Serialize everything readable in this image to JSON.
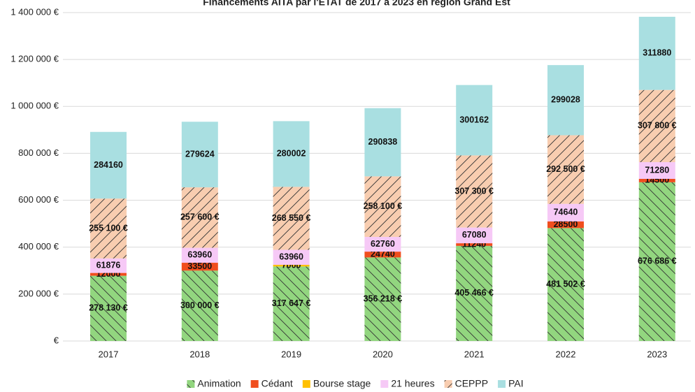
{
  "chart_data": {
    "type": "stacked_bar",
    "title": "Financements AITA par l'ETAT de 2017 à 2023 en région Grand Est",
    "categories": [
      "2017",
      "2018",
      "2019",
      "2020",
      "2021",
      "2022",
      "2023"
    ],
    "ylim": [
      0,
      1400000
    ],
    "yticks": [
      {
        "value": 0,
        "label": "€"
      },
      {
        "value": 200000,
        "label": "200 000 €"
      },
      {
        "value": 400000,
        "label": "400 000 €"
      },
      {
        "value": 600000,
        "label": "600 000 €"
      },
      {
        "value": 800000,
        "label": "800 000 €"
      },
      {
        "value": 1000000,
        "label": "1 000 000 €"
      },
      {
        "value": 1200000,
        "label": "1 200 000 €"
      },
      {
        "value": 1400000,
        "label": "1 400 000 €"
      }
    ],
    "grid": true,
    "legend": "bottom",
    "series": [
      {
        "name": "Animation",
        "color": "#92d67f",
        "hatch": "backslash",
        "values": [
          278130,
          300000,
          317647,
          356218,
          405466,
          481502,
          676686
        ],
        "value_labels": [
          "278 130 €",
          "300 000 €",
          "317 647 €",
          "356 218 €",
          "405 466 €",
          "481 502 €",
          "676 686 €"
        ]
      },
      {
        "name": "Cédant",
        "color": "#f04e1e",
        "values": [
          12000,
          33500,
          null,
          24740,
          11240,
          28500,
          14500
        ]
      },
      {
        "name": "Bourse stage",
        "color": "#ffc000",
        "values": [
          null,
          null,
          7000,
          null,
          null,
          null,
          null
        ]
      },
      {
        "name": "21 heures",
        "color": "#f6c9f6",
        "values": [
          61876,
          63960,
          63960,
          62760,
          67080,
          74640,
          71280
        ]
      },
      {
        "name": "CEPPP",
        "color": "#f8cdb0",
        "hatch": "slash",
        "values": [
          255100,
          257600,
          268550,
          258100,
          307300,
          292500,
          307800
        ],
        "value_labels": [
          "255 100 €",
          "257 600 €",
          "268 550 €",
          "258 100 €",
          "307 300 €",
          "292 500 €",
          "307 800 €"
        ]
      },
      {
        "name": "PAI",
        "color": "#a9dfe1",
        "values": [
          284160,
          279624,
          280002,
          290838,
          300162,
          299028,
          311880
        ]
      }
    ]
  }
}
